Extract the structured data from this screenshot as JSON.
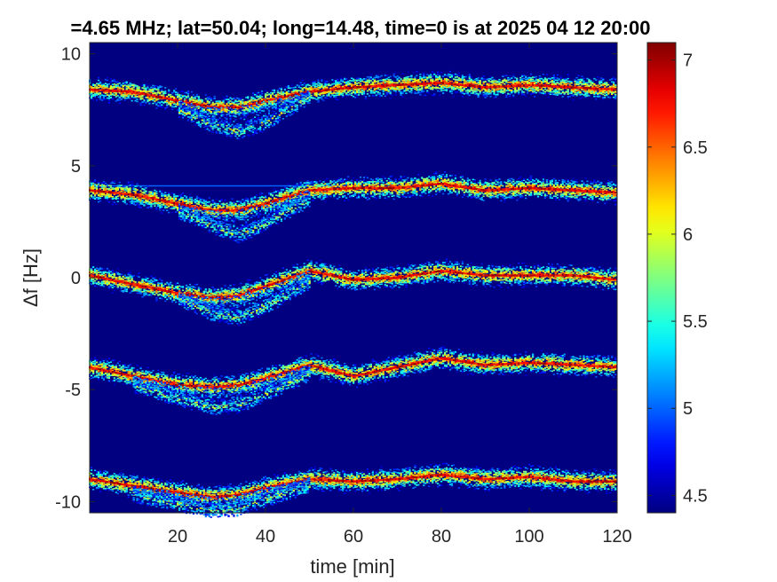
{
  "chart_data": {
    "type": "heatmap",
    "title": "=4.65 MHz;  lat=50.04; long=14.48, time=0 is at 2025 04 12 20:00",
    "xlabel": "time [min]",
    "ylabel": "Δf [Hz]",
    "xlim": [
      0,
      120
    ],
    "ylim": [
      -10.5,
      10.5
    ],
    "x_ticks": [
      20,
      40,
      60,
      80,
      100,
      120
    ],
    "y_ticks": [
      -10,
      -5,
      0,
      5,
      10
    ],
    "colorbar": {
      "clim": [
        4.4,
        7.1
      ],
      "ticks": [
        4.5,
        5,
        5.5,
        6,
        6.5,
        7
      ],
      "colormap": "jet"
    },
    "background_value": 4.4,
    "traces": [
      {
        "name": "",
        "offset": 8.4,
        "peak_value": 7.1,
        "time": [
          0,
          10,
          20,
          28,
          34,
          40,
          50,
          60,
          70,
          80,
          90,
          100,
          110,
          120
        ],
        "delta_f": [
          8.4,
          8.3,
          7.9,
          7.6,
          7.6,
          7.9,
          8.3,
          8.5,
          8.6,
          8.7,
          8.5,
          8.6,
          8.5,
          8.4
        ],
        "lower_branch": {
          "time": [
            20,
            28,
            34,
            40,
            50
          ],
          "delta_f": [
            7.5,
            6.8,
            6.5,
            6.9,
            8.1
          ]
        }
      },
      {
        "name": "",
        "offset": 3.9,
        "peak_value": 7.1,
        "time": [
          0,
          10,
          20,
          28,
          34,
          40,
          50,
          60,
          70,
          80,
          90,
          100,
          110,
          120
        ],
        "delta_f": [
          3.9,
          3.7,
          3.3,
          3.0,
          3.0,
          3.3,
          3.9,
          4.0,
          4.0,
          4.2,
          3.9,
          4.0,
          3.9,
          3.8
        ],
        "lower_branch": {
          "time": [
            20,
            28,
            34,
            40,
            50
          ],
          "delta_f": [
            3.0,
            2.3,
            1.9,
            2.4,
            3.5
          ]
        }
      },
      {
        "name": "",
        "offset": 0,
        "peak_value": 7.1,
        "time": [
          0,
          10,
          20,
          28,
          34,
          40,
          50,
          60,
          70,
          80,
          90,
          100,
          110,
          120
        ],
        "delta_f": [
          0.1,
          -0.3,
          -0.7,
          -0.9,
          -0.8,
          -0.4,
          0.3,
          -0.1,
          0.0,
          0.3,
          0.1,
          0.1,
          0.1,
          -0.1
        ],
        "lower_branch": {
          "time": [
            20,
            28,
            34,
            40,
            50
          ],
          "delta_f": [
            -0.9,
            -1.6,
            -1.8,
            -1.3,
            -0.2
          ]
        }
      },
      {
        "name": "",
        "offset": -4.0,
        "peak_value": 7.1,
        "time": [
          0,
          10,
          20,
          28,
          34,
          40,
          50,
          60,
          70,
          80,
          90,
          100,
          110,
          120
        ],
        "delta_f": [
          -4.0,
          -4.4,
          -4.8,
          -4.9,
          -4.8,
          -4.5,
          -3.9,
          -4.4,
          -4.0,
          -3.6,
          -3.9,
          -3.8,
          -3.9,
          -4.0
        ],
        "lower_branch": {
          "time": [
            10,
            20,
            28,
            34,
            40,
            50
          ],
          "delta_f": [
            -4.8,
            -5.4,
            -5.8,
            -5.7,
            -5.2,
            -4.3
          ]
        }
      },
      {
        "name": "",
        "offset": -9.0,
        "peak_value": 7.1,
        "time": [
          0,
          10,
          20,
          28,
          34,
          40,
          50,
          60,
          70,
          80,
          90,
          100,
          110,
          120
        ],
        "delta_f": [
          -9.0,
          -9.3,
          -9.6,
          -9.8,
          -9.7,
          -9.4,
          -9.0,
          -9.1,
          -9.0,
          -8.8,
          -9.0,
          -8.9,
          -9.1,
          -9.1
        ],
        "lower_branch": {
          "time": [
            10,
            20,
            28,
            34,
            40,
            50
          ],
          "delta_f": [
            -9.7,
            -10.1,
            -10.4,
            -10.3,
            -9.9,
            -9.3
          ]
        }
      }
    ],
    "carrier_line": {
      "delta_f": 4.1,
      "time_range": [
        0,
        60
      ],
      "value": 5.0
    }
  }
}
